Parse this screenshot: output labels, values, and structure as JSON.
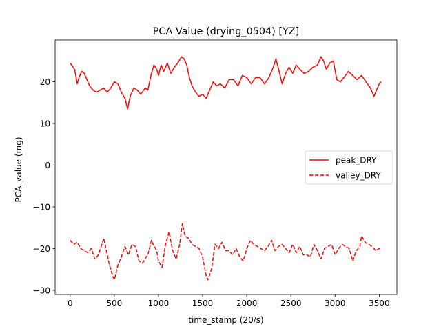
{
  "chart_data": {
    "type": "line",
    "title": "PCA Value (drying_0504) [YZ]",
    "xlabel": "time_stamp (20/s)",
    "ylabel": "PCA_value (mg)",
    "xlim": [
      -170,
      3700
    ],
    "ylim": [
      -31,
      30
    ],
    "xticks": [
      0,
      500,
      1000,
      1500,
      2000,
      2500,
      3000,
      3500
    ],
    "yticks": [
      -30,
      -20,
      -10,
      0,
      10,
      20
    ],
    "grid": false,
    "legend_position": "center-right",
    "series": [
      {
        "name": "peak_DRY",
        "color": "#ff0000",
        "style": "solid",
        "x": [
          0,
          50,
          80,
          100,
          130,
          160,
          200,
          220,
          260,
          300,
          340,
          380,
          420,
          460,
          500,
          540,
          580,
          620,
          650,
          680,
          720,
          760,
          800,
          850,
          880,
          920,
          950,
          980,
          1000,
          1030,
          1060,
          1100,
          1140,
          1180,
          1220,
          1260,
          1290,
          1320,
          1350,
          1380,
          1420,
          1460,
          1500,
          1540,
          1580,
          1620,
          1660,
          1700,
          1750,
          1800,
          1850,
          1900,
          1950,
          2000,
          2050,
          2100,
          2150,
          2200,
          2250,
          2300,
          2330,
          2360,
          2400,
          2440,
          2480,
          2520,
          2560,
          2600,
          2650,
          2700,
          2750,
          2800,
          2840,
          2870,
          2900,
          2940,
          2980,
          3020,
          3060,
          3100,
          3150,
          3200,
          3250,
          3300,
          3350,
          3400,
          3440,
          3470,
          3500,
          3520
        ],
        "y": [
          24.5,
          23,
          19.5,
          21,
          22.5,
          22,
          20,
          19,
          18,
          17.5,
          18,
          18.5,
          17.5,
          18.5,
          20,
          19.5,
          17.5,
          16,
          13.5,
          16.5,
          18.5,
          18,
          17,
          18.5,
          18,
          22,
          24,
          23,
          21.5,
          24,
          22.5,
          24.5,
          22,
          23.5,
          24.5,
          26,
          25.5,
          24,
          21,
          19,
          17.5,
          16.5,
          17,
          16,
          18,
          20,
          19,
          19.5,
          18.5,
          20.5,
          20.5,
          19,
          21.5,
          21,
          19.5,
          21,
          21,
          19.5,
          21,
          23.5,
          25.5,
          23,
          19.5,
          22,
          23.5,
          22,
          24,
          23,
          22,
          22.5,
          23.5,
          24,
          26,
          25,
          23,
          24.5,
          25,
          20.5,
          20,
          21,
          22.5,
          21.5,
          20.5,
          21.5,
          20,
          18.5,
          16.5,
          18,
          19.5,
          20
        ]
      },
      {
        "name": "valley_DRY",
        "color": "#ff0000",
        "style": "dashed",
        "x": [
          0,
          40,
          80,
          120,
          160,
          200,
          240,
          280,
          320,
          360,
          380,
          400,
          440,
          480,
          500,
          540,
          580,
          620,
          660,
          700,
          740,
          780,
          820,
          860,
          880,
          920,
          940,
          980,
          1000,
          1040,
          1080,
          1120,
          1160,
          1200,
          1240,
          1270,
          1300,
          1340,
          1380,
          1420,
          1460,
          1500,
          1540,
          1560,
          1600,
          1640,
          1680,
          1720,
          1760,
          1800,
          1840,
          1880,
          1920,
          1960,
          2000,
          2040,
          2080,
          2120,
          2160,
          2200,
          2240,
          2280,
          2320,
          2360,
          2400,
          2440,
          2480,
          2520,
          2560,
          2600,
          2640,
          2680,
          2720,
          2760,
          2800,
          2840,
          2880,
          2920,
          2960,
          3000,
          3040,
          3080,
          3120,
          3160,
          3200,
          3240,
          3280,
          3300,
          3340,
          3380,
          3420,
          3460,
          3500,
          3520
        ],
        "y": [
          -18,
          -19,
          -18.5,
          -20,
          -20.5,
          -21,
          -20,
          -22.5,
          -21.5,
          -19,
          -17.5,
          -19.5,
          -23.5,
          -26.5,
          -27.5,
          -24,
          -22,
          -19.5,
          -21.5,
          -19,
          -19.5,
          -23,
          -23.5,
          -22,
          -21.5,
          -18,
          -19,
          -20.5,
          -23,
          -24.5,
          -19,
          -16,
          -20.5,
          -22.5,
          -19,
          -14,
          -17,
          -17.5,
          -19,
          -19.5,
          -20,
          -22,
          -26.5,
          -27.5,
          -25,
          -19,
          -20,
          -18.5,
          -20.5,
          -20.5,
          -21.5,
          -20,
          -22,
          -23,
          -20,
          -18,
          -19,
          -19.5,
          -20,
          -20.5,
          -19.5,
          -18,
          -20.5,
          -19.5,
          -19,
          -20,
          -21,
          -19,
          -21,
          -19.5,
          -21.5,
          -21.5,
          -22,
          -19,
          -20.5,
          -22.5,
          -20,
          -19.5,
          -19,
          -21.5,
          -20,
          -19,
          -19.5,
          -20,
          -23,
          -20.5,
          -19.5,
          -17,
          -18.5,
          -19,
          -19.5,
          -20.5,
          -20,
          -20
        ]
      }
    ]
  }
}
